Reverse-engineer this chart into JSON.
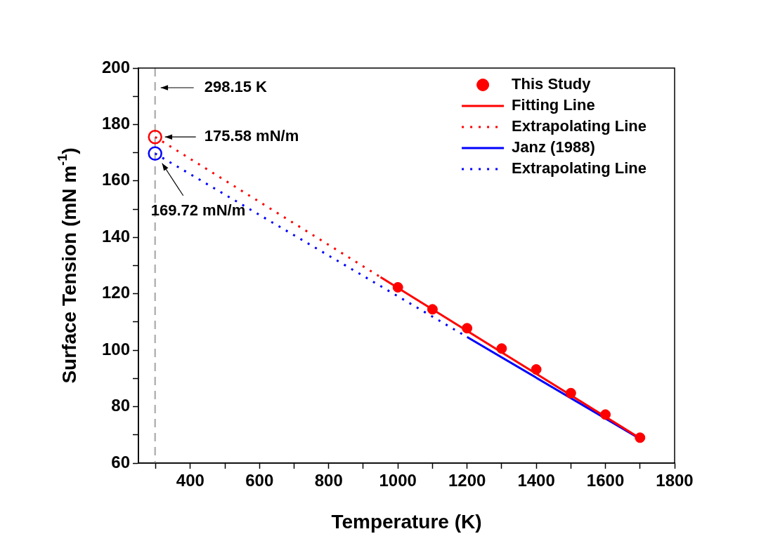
{
  "chart_data": {
    "type": "line",
    "xlabel": "Temperature (K)",
    "ylabel": "Surface Tension (mN m$^{-1}$)",
    "xlim": [
      250,
      1800
    ],
    "xticks": [
      {
        "value": 300,
        "label": null
      },
      400,
      {
        "value": 500,
        "label": null
      },
      600,
      {
        "value": 700,
        "label": null
      },
      800,
      {
        "value": 900,
        "label": null
      },
      1000,
      {
        "value": 1100,
        "label": null
      },
      1200,
      {
        "value": 1300,
        "label": null
      },
      1400,
      {
        "value": 1500,
        "label": null
      },
      1600,
      {
        "value": 1700,
        "label": null
      },
      1800
    ],
    "ylim": [
      60,
      200
    ],
    "yticks": [
      60,
      {
        "value": 70,
        "label": null
      },
      80,
      {
        "value": 90,
        "label": null
      },
      100,
      {
        "value": 110,
        "label": null
      },
      120,
      {
        "value": 130,
        "label": null
      },
      140,
      {
        "value": 150,
        "label": null
      },
      160,
      {
        "value": 170,
        "label": null
      },
      180,
      {
        "value": 190,
        "label": null
      },
      200
    ],
    "grid": false,
    "legend": "top right",
    "series": [
      {
        "name": "This Study",
        "type": "scatter",
        "color": "#ff0000",
        "marker": "circle",
        "x": [
          1000,
          1100,
          1200,
          1300,
          1400,
          1500,
          1600,
          1700
        ],
        "values": [
          122.3,
          114.5,
          107.8,
          100.6,
          93.2,
          84.8,
          77.2,
          69.0
        ]
      },
      {
        "name": "Fitting Line",
        "type": "line",
        "color": "#ff0000",
        "line_style": "solid",
        "marker": "none",
        "x": [
          950,
          1700
        ],
        "values": [
          125.9,
          68.8
        ]
      },
      {
        "name": "Extrapolating Line",
        "type": "line",
        "color": "#ff0000",
        "line_style": "dotted",
        "marker": "none",
        "x": [
          298.15,
          950
        ],
        "values": [
          175.58,
          125.9
        ]
      },
      {
        "name": "Janz (1988)",
        "type": "line",
        "color": "#0000ff",
        "line_style": "solid",
        "marker": "none",
        "x": [
          1200,
          1700
        ],
        "values": [
          104.7,
          68.6
        ]
      },
      {
        "name": "Extrapolating Line",
        "type": "line",
        "color": "#0000ff",
        "line_style": "dotted",
        "marker": "none",
        "x": [
          298.15,
          1200
        ],
        "values": [
          169.72,
          104.7
        ]
      },
      {
        "type": "scatter",
        "color": "#ff0000",
        "marker": "circle",
        "x": [
          298.15
        ],
        "values": [
          175.58
        ]
      },
      {
        "type": "scatter",
        "color": "#0000ff",
        "marker": "circle",
        "x": [
          298.15
        ],
        "values": [
          169.72
        ]
      }
    ],
    "ref_lines": [
      {
        "axis": "x",
        "value": 298.15,
        "label": "298.15 K",
        "color": "#b4b4b4",
        "line_style": "dashed"
      }
    ],
    "annotations": [
      "175.58 mN/m",
      "169.72 mN/m"
    ]
  }
}
